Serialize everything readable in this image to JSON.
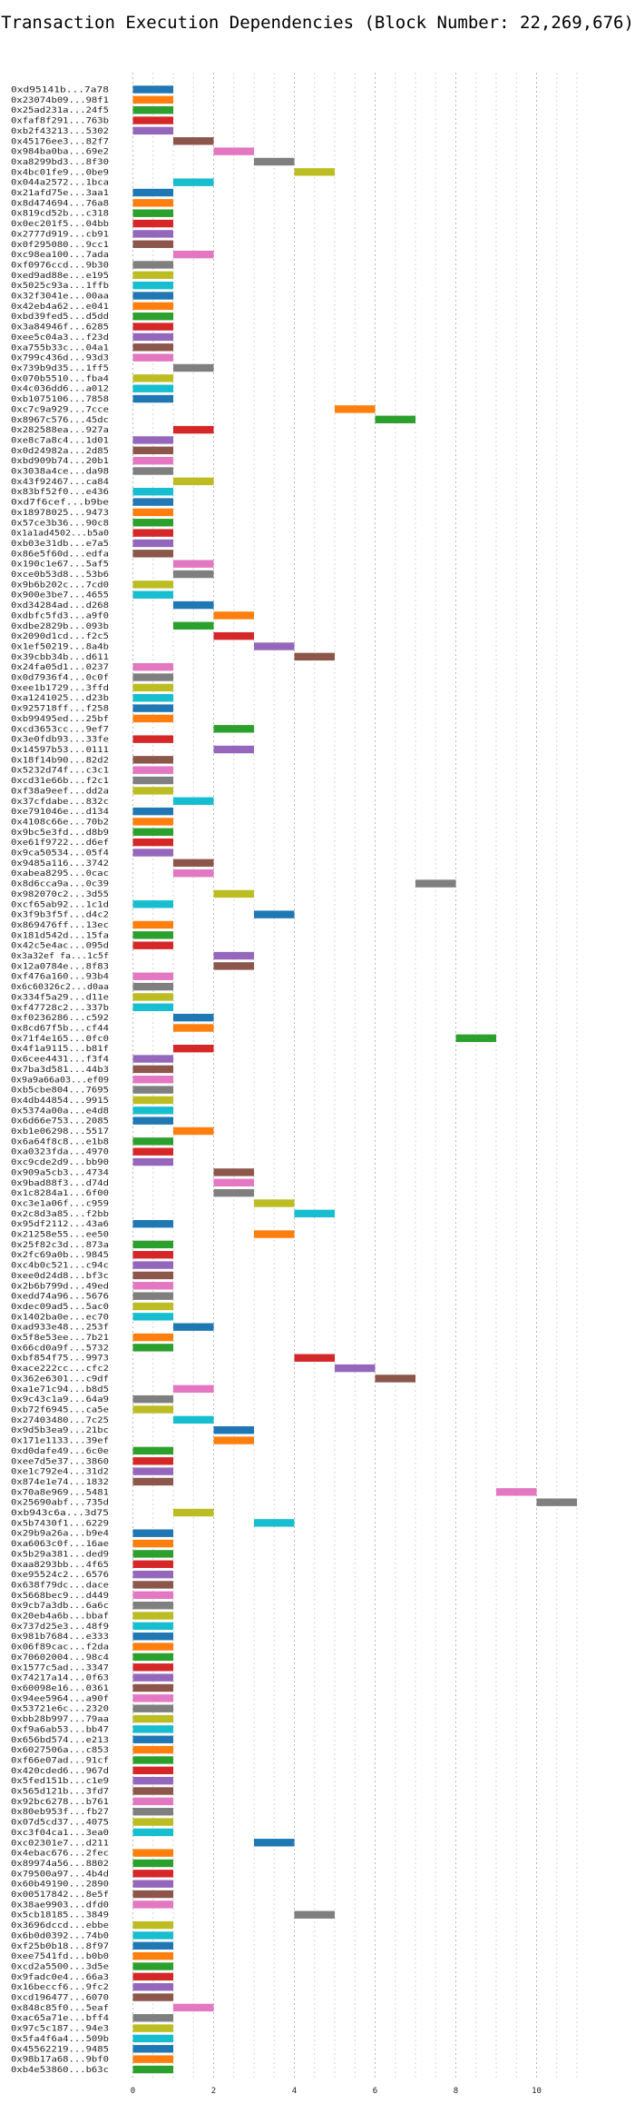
{
  "chart_data": {
    "type": "bar",
    "orientation": "horizontal",
    "title": "Transaction Execution Dependencies (Block Number: 22,269,676)",
    "xlabel": "",
    "ylabel": "",
    "xlim": [
      0,
      11.25
    ],
    "xticks": [
      0,
      2,
      4,
      6,
      8,
      10
    ],
    "grid": "vertical dotted",
    "legend": "none",
    "palette": [
      "#1f77b4",
      "#ff7f0e",
      "#2ca02c",
      "#d62728",
      "#9467bd",
      "#8c564b",
      "#e377c2",
      "#7f7f7f",
      "#bcbd22",
      "#17becf"
    ],
    "transactions": [
      {
        "hash": "0xd95141b...7a78",
        "start": 0,
        "end": 1
      },
      {
        "hash": "0x23074b09...98f1",
        "start": 0,
        "end": 1
      },
      {
        "hash": "0x25ad231a...24f5",
        "start": 0,
        "end": 1
      },
      {
        "hash": "0xfaf8f291...763b",
        "start": 0,
        "end": 1
      },
      {
        "hash": "0xb2f43213...5302",
        "start": 0,
        "end": 1
      },
      {
        "hash": "0x45176ee3...82f7",
        "start": 1,
        "end": 2
      },
      {
        "hash": "0x984ba0ba...69e2",
        "start": 2,
        "end": 3
      },
      {
        "hash": "0xa8299bd3...8f30",
        "start": 3,
        "end": 4
      },
      {
        "hash": "0x4bc01fe9...0be9",
        "start": 4,
        "end": 5
      },
      {
        "hash": "0x044a2572...1bca",
        "start": 1,
        "end": 2
      },
      {
        "hash": "0x21afd75e...3aa1",
        "start": 0,
        "end": 1
      },
      {
        "hash": "0x8d474694...76a8",
        "start": 0,
        "end": 1
      },
      {
        "hash": "0x819cd52b...c318",
        "start": 0,
        "end": 1
      },
      {
        "hash": "0x0ec201f5...04bb",
        "start": 0,
        "end": 1
      },
      {
        "hash": "0x2777d919...cb91",
        "start": 0,
        "end": 1
      },
      {
        "hash": "0x0f295080...9cc1",
        "start": 0,
        "end": 1
      },
      {
        "hash": "0xc98ea100...7ada",
        "start": 1,
        "end": 2
      },
      {
        "hash": "0xf0976ccd...9b30",
        "start": 0,
        "end": 1
      },
      {
        "hash": "0xed9ad88e...e195",
        "start": 0,
        "end": 1
      },
      {
        "hash": "0x5025c93a...1ffb",
        "start": 0,
        "end": 1
      },
      {
        "hash": "0x32f3041e...00aa",
        "start": 0,
        "end": 1
      },
      {
        "hash": "0x42eb4a62...e041",
        "start": 0,
        "end": 1
      },
      {
        "hash": "0xbd39fed5...d5dd",
        "start": 0,
        "end": 1
      },
      {
        "hash": "0x3a84946f...6285",
        "start": 0,
        "end": 1
      },
      {
        "hash": "0xee5c04a3...f23d",
        "start": 0,
        "end": 1
      },
      {
        "hash": "0xa755b33c...04a1",
        "start": 0,
        "end": 1
      },
      {
        "hash": "0x799c436d...93d3",
        "start": 0,
        "end": 1
      },
      {
        "hash": "0x739b9d35...1ff5",
        "start": 1,
        "end": 2
      },
      {
        "hash": "0x070b5510...fba4",
        "start": 0,
        "end": 1
      },
      {
        "hash": "0x4c036dd6...a012",
        "start": 0,
        "end": 1
      },
      {
        "hash": "0xb1075106...7858",
        "start": 0,
        "end": 1
      },
      {
        "hash": "0xc7c9a929...7cce",
        "start": 5,
        "end": 6
      },
      {
        "hash": "0x8967c576...45dc",
        "start": 6,
        "end": 7
      },
      {
        "hash": "0x282588ea...927a",
        "start": 1,
        "end": 2
      },
      {
        "hash": "0xe8c7a8c4...1d01",
        "start": 0,
        "end": 1
      },
      {
        "hash": "0x0d24982a...2d85",
        "start": 0,
        "end": 1
      },
      {
        "hash": "0xbd909b74...20b1",
        "start": 0,
        "end": 1
      },
      {
        "hash": "0x3038a4ce...da98",
        "start": 0,
        "end": 1
      },
      {
        "hash": "0x43f92467...ca84",
        "start": 1,
        "end": 2
      },
      {
        "hash": "0x83bf52f0...e436",
        "start": 0,
        "end": 1
      },
      {
        "hash": "0xd7f6cef...b9be",
        "start": 0,
        "end": 1
      },
      {
        "hash": "0x18978025...9473",
        "start": 0,
        "end": 1
      },
      {
        "hash": "0x57ce3b36...90c8",
        "start": 0,
        "end": 1
      },
      {
        "hash": "0x1a1ad4502...b5a0",
        "start": 0,
        "end": 1
      },
      {
        "hash": "0xb03e31db...e7a5",
        "start": 0,
        "end": 1
      },
      {
        "hash": "0x86e5f60d...edfa",
        "start": 0,
        "end": 1
      },
      {
        "hash": "0x190c1e67...5af5",
        "start": 1,
        "end": 2
      },
      {
        "hash": "0xce0b53d8...53b6",
        "start": 1,
        "end": 2
      },
      {
        "hash": "0x9b6b202c...7cd0",
        "start": 0,
        "end": 1
      },
      {
        "hash": "0x900e3be7...4655",
        "start": 0,
        "end": 1
      },
      {
        "hash": "0xd34284ad...d268",
        "start": 1,
        "end": 2
      },
      {
        "hash": "0xdbfc5fd3...a9f0",
        "start": 2,
        "end": 3
      },
      {
        "hash": "0xdbe2829b...093b",
        "start": 1,
        "end": 2
      },
      {
        "hash": "0x2090d1cd...f2c5",
        "start": 2,
        "end": 3
      },
      {
        "hash": "0x1ef50219...8a4b",
        "start": 3,
        "end": 4
      },
      {
        "hash": "0x39cbb34b...d611",
        "start": 4,
        "end": 5
      },
      {
        "hash": "0x24fa05d1...0237",
        "start": 0,
        "end": 1
      },
      {
        "hash": "0x0d7936f4...0c0f",
        "start": 0,
        "end": 1
      },
      {
        "hash": "0xee1b1729...3ffd",
        "start": 0,
        "end": 1
      },
      {
        "hash": "0xa1241025...d23b",
        "start": 0,
        "end": 1
      },
      {
        "hash": "0x925718ff...f258",
        "start": 0,
        "end": 1
      },
      {
        "hash": "0xb99495ed...25bf",
        "start": 0,
        "end": 1
      },
      {
        "hash": "0xcd3653cc...9ef7",
        "start": 2,
        "end": 3
      },
      {
        "hash": "0x3e0fdb93...33fe",
        "start": 0,
        "end": 1
      },
      {
        "hash": "0x14597b53...0111",
        "start": 2,
        "end": 3
      },
      {
        "hash": "0x18f14b90...82d2",
        "start": 0,
        "end": 1
      },
      {
        "hash": "0x5232d74f...c3c1",
        "start": 0,
        "end": 1
      },
      {
        "hash": "0xcd31e66b...f2c1",
        "start": 0,
        "end": 1
      },
      {
        "hash": "0xf38a9eef...dd2a",
        "start": 0,
        "end": 1
      },
      {
        "hash": "0x37cfdabe...832c",
        "start": 1,
        "end": 2
      },
      {
        "hash": "0xe791046e...d134",
        "start": 0,
        "end": 1
      },
      {
        "hash": "0x4108c66e...70b2",
        "start": 0,
        "end": 1
      },
      {
        "hash": "0x9bc5e3fd...d8b9",
        "start": 0,
        "end": 1
      },
      {
        "hash": "0xe61f9722...d6ef",
        "start": 0,
        "end": 1
      },
      {
        "hash": "0x9ca50534...05f4",
        "start": 0,
        "end": 1
      },
      {
        "hash": "0x9485a116...3742",
        "start": 1,
        "end": 2
      },
      {
        "hash": "0xabea8295...0cac",
        "start": 1,
        "end": 2
      },
      {
        "hash": "0x8d6cca9a...0c39",
        "start": 7,
        "end": 8
      },
      {
        "hash": "0x982070c2...3d55",
        "start": 2,
        "end": 3
      },
      {
        "hash": "0xcf65ab92...1c1d",
        "start": 0,
        "end": 1
      },
      {
        "hash": "0x3f9b3f5f...d4c2",
        "start": 3,
        "end": 4
      },
      {
        "hash": "0x869476ff...13ec",
        "start": 0,
        "end": 1
      },
      {
        "hash": "0x181d542d...15fa",
        "start": 0,
        "end": 1
      },
      {
        "hash": "0x42c5e4ac...095d",
        "start": 0,
        "end": 1
      },
      {
        "hash": "0x3a32ef fa...1c5f",
        "start": 2,
        "end": 3
      },
      {
        "hash": "0x12a0784e...8f83",
        "start": 2,
        "end": 3
      },
      {
        "hash": "0xf476a160...93b4",
        "start": 0,
        "end": 1
      },
      {
        "hash": "0x6c60326c2...d0aa",
        "start": 0,
        "end": 1
      },
      {
        "hash": "0x334f5a29...d11e",
        "start": 0,
        "end": 1
      },
      {
        "hash": "0xf47728c2...337b",
        "start": 0,
        "end": 1
      },
      {
        "hash": "0xf0236286...c592",
        "start": 1,
        "end": 2
      },
      {
        "hash": "0x8cd67f5b...cf44",
        "start": 1,
        "end": 2
      },
      {
        "hash": "0x71f4e165...0fc0",
        "start": 8,
        "end": 9
      },
      {
        "hash": "0x4f1a9115...b81f",
        "start": 1,
        "end": 2
      },
      {
        "hash": "0x6cee4431...f3f4",
        "start": 0,
        "end": 1
      },
      {
        "hash": "0x7ba3d581...44b3",
        "start": 0,
        "end": 1
      },
      {
        "hash": "0x9a9a66a03...ef09",
        "start": 0,
        "end": 1
      },
      {
        "hash": "0xb5cbe804...7695",
        "start": 0,
        "end": 1
      },
      {
        "hash": "0x4db44854...9915",
        "start": 0,
        "end": 1
      },
      {
        "hash": "0x5374a00a...e4d8",
        "start": 0,
        "end": 1
      },
      {
        "hash": "0x6d66e753...2085",
        "start": 0,
        "end": 1
      },
      {
        "hash": "0xb1e06298...5517",
        "start": 1,
        "end": 2
      },
      {
        "hash": "0x6a64f8c8...e1b8",
        "start": 0,
        "end": 1
      },
      {
        "hash": "0xa0323fda...4970",
        "start": 0,
        "end": 1
      },
      {
        "hash": "0xc9cde2d9...bb90",
        "start": 0,
        "end": 1
      },
      {
        "hash": "0x909a5cb3...4734",
        "start": 2,
        "end": 3
      },
      {
        "hash": "0x9bad88f3...d74d",
        "start": 2,
        "end": 3
      },
      {
        "hash": "0x1c8284a1...6f00",
        "start": 2,
        "end": 3
      },
      {
        "hash": "0xc3e1a06f...c959",
        "start": 3,
        "end": 4
      },
      {
        "hash": "0x2c8d3a85...f2bb",
        "start": 4,
        "end": 5
      },
      {
        "hash": "0x95df2112...43a6",
        "start": 0,
        "end": 1
      },
      {
        "hash": "0x21258e55...ee50",
        "start": 3,
        "end": 4
      },
      {
        "hash": "0x25f82c3d...873a",
        "start": 0,
        "end": 1
      },
      {
        "hash": "0x2fc69a0b...9845",
        "start": 0,
        "end": 1
      },
      {
        "hash": "0xc4b0c521...c94c",
        "start": 0,
        "end": 1
      },
      {
        "hash": "0xee0d24d8...bf3c",
        "start": 0,
        "end": 1
      },
      {
        "hash": "0x2b6b799d...49ed",
        "start": 0,
        "end": 1
      },
      {
        "hash": "0xedd74a96...5676",
        "start": 0,
        "end": 1
      },
      {
        "hash": "0xdec09ad5...5ac0",
        "start": 0,
        "end": 1
      },
      {
        "hash": "0x1402ba0e...ec70",
        "start": 0,
        "end": 1
      },
      {
        "hash": "0xad933e48...253f",
        "start": 1,
        "end": 2
      },
      {
        "hash": "0x5f8e53ee...7b21",
        "start": 0,
        "end": 1
      },
      {
        "hash": "0x66cd0a9f...5732",
        "start": 0,
        "end": 1
      },
      {
        "hash": "0xbf854f75...9973",
        "start": 4,
        "end": 5
      },
      {
        "hash": "0xace222cc...cfc2",
        "start": 5,
        "end": 6
      },
      {
        "hash": "0x362e6301...c9df",
        "start": 6,
        "end": 7
      },
      {
        "hash": "0xa1e71c94...b8d5",
        "start": 1,
        "end": 2
      },
      {
        "hash": "0x9c43c1a9...64a9",
        "start": 0,
        "end": 1
      },
      {
        "hash": "0xb72f6945...ca5e",
        "start": 0,
        "end": 1
      },
      {
        "hash": "0x27403480...7c25",
        "start": 1,
        "end": 2
      },
      {
        "hash": "0x9d5b3ea9...21bc",
        "start": 2,
        "end": 3
      },
      {
        "hash": "0x171e1133...39ef",
        "start": 2,
        "end": 3
      },
      {
        "hash": "0xd0dafe49...6c0e",
        "start": 0,
        "end": 1
      },
      {
        "hash": "0xee7d5e37...3860",
        "start": 0,
        "end": 1
      },
      {
        "hash": "0xe1c792e4...31d2",
        "start": 0,
        "end": 1
      },
      {
        "hash": "0x874e1e74...1832",
        "start": 0,
        "end": 1
      },
      {
        "hash": "0x70a8e969...5481",
        "start": 9,
        "end": 10
      },
      {
        "hash": "0x25690abf...735d",
        "start": 10,
        "end": 11
      },
      {
        "hash": "0xb943c6a...3d75",
        "start": 1,
        "end": 2
      },
      {
        "hash": "0x5b7430f1...6229",
        "start": 3,
        "end": 4
      },
      {
        "hash": "0x29b9a26a...b9e4",
        "start": 0,
        "end": 1
      },
      {
        "hash": "0xa6063c0f...16ae",
        "start": 0,
        "end": 1
      },
      {
        "hash": "0x5b29a381...ded9",
        "start": 0,
        "end": 1
      },
      {
        "hash": "0xaa8293bb...4f65",
        "start": 0,
        "end": 1
      },
      {
        "hash": "0xe95524c2...6576",
        "start": 0,
        "end": 1
      },
      {
        "hash": "0x638f79dc...dace",
        "start": 0,
        "end": 1
      },
      {
        "hash": "0x5668bec9...d449",
        "start": 0,
        "end": 1
      },
      {
        "hash": "0x9cb7a3db...6a6c",
        "start": 0,
        "end": 1
      },
      {
        "hash": "0x20eb4a6b...bbaf",
        "start": 0,
        "end": 1
      },
      {
        "hash": "0x737d25e3...48f9",
        "start": 0,
        "end": 1
      },
      {
        "hash": "0x981b7684...e333",
        "start": 0,
        "end": 1
      },
      {
        "hash": "0x06f89cac...f2da",
        "start": 0,
        "end": 1
      },
      {
        "hash": "0x70602004...98c4",
        "start": 0,
        "end": 1
      },
      {
        "hash": "0x1577c5ad...3347",
        "start": 0,
        "end": 1
      },
      {
        "hash": "0x74217a14...0f63",
        "start": 0,
        "end": 1
      },
      {
        "hash": "0x60098e16...0361",
        "start": 0,
        "end": 1
      },
      {
        "hash": "0x94ee5964...a90f",
        "start": 0,
        "end": 1
      },
      {
        "hash": "0x53721e6c...2320",
        "start": 0,
        "end": 1
      },
      {
        "hash": "0xbb28b997...79aa",
        "start": 0,
        "end": 1
      },
      {
        "hash": "0xf9a6ab53...bb47",
        "start": 0,
        "end": 1
      },
      {
        "hash": "0x656bd574...e213",
        "start": 0,
        "end": 1
      },
      {
        "hash": "0x6027506a...c853",
        "start": 0,
        "end": 1
      },
      {
        "hash": "0xf66e07ad...91cf",
        "start": 0,
        "end": 1
      },
      {
        "hash": "0x420cded6...967d",
        "start": 0,
        "end": 1
      },
      {
        "hash": "0x5fed151b...c1e9",
        "start": 0,
        "end": 1
      },
      {
        "hash": "0x565d121b...3fd7",
        "start": 0,
        "end": 1
      },
      {
        "hash": "0x92bc6278...b761",
        "start": 0,
        "end": 1
      },
      {
        "hash": "0x80eb953f...fb27",
        "start": 0,
        "end": 1
      },
      {
        "hash": "0x07d5cd37...4075",
        "start": 0,
        "end": 1
      },
      {
        "hash": "0xc3f04ca1...3ea0",
        "start": 0,
        "end": 1
      },
      {
        "hash": "0xc02301e7...d211",
        "start": 3,
        "end": 4
      },
      {
        "hash": "0x4ebac676...2fec",
        "start": 0,
        "end": 1
      },
      {
        "hash": "0x89974a56...8802",
        "start": 0,
        "end": 1
      },
      {
        "hash": "0x79500a97...4b4d",
        "start": 0,
        "end": 1
      },
      {
        "hash": "0x60b49190...2890",
        "start": 0,
        "end": 1
      },
      {
        "hash": "0x00517842...8e5f",
        "start": 0,
        "end": 1
      },
      {
        "hash": "0x38ae9903...dfd0",
        "start": 0,
        "end": 1
      },
      {
        "hash": "0x5cb18185...3849",
        "start": 4,
        "end": 5
      },
      {
        "hash": "0x3696dccd...ebbe",
        "start": 0,
        "end": 1
      },
      {
        "hash": "0x6b0d0392...74b0",
        "start": 0,
        "end": 1
      },
      {
        "hash": "0xf25b0b18...8f97",
        "start": 0,
        "end": 1
      },
      {
        "hash": "0xee7541fd...b0b0",
        "start": 0,
        "end": 1
      },
      {
        "hash": "0xcd2a5500...3d5e",
        "start": 0,
        "end": 1
      },
      {
        "hash": "0x9fadc0e4...66a3",
        "start": 0,
        "end": 1
      },
      {
        "hash": "0x16beccf6...9fc2",
        "start": 0,
        "end": 1
      },
      {
        "hash": "0xcd196477...6070",
        "start": 0,
        "end": 1
      },
      {
        "hash": "0x848c85f0...5eaf",
        "start": 1,
        "end": 2
      },
      {
        "hash": "0xac65a71e...bff4",
        "start": 0,
        "end": 1
      },
      {
        "hash": "0x97c5c187...94e3",
        "start": 0,
        "end": 1
      },
      {
        "hash": "0x5fa4f6a4...509b",
        "start": 0,
        "end": 1
      },
      {
        "hash": "0x45562219...9485",
        "start": 0,
        "end": 1
      },
      {
        "hash": "0x98b17a68...9bf0",
        "start": 0,
        "end": 1
      },
      {
        "hash": "0xb4e53860...b63c",
        "start": 0,
        "end": 1
      }
    ]
  }
}
